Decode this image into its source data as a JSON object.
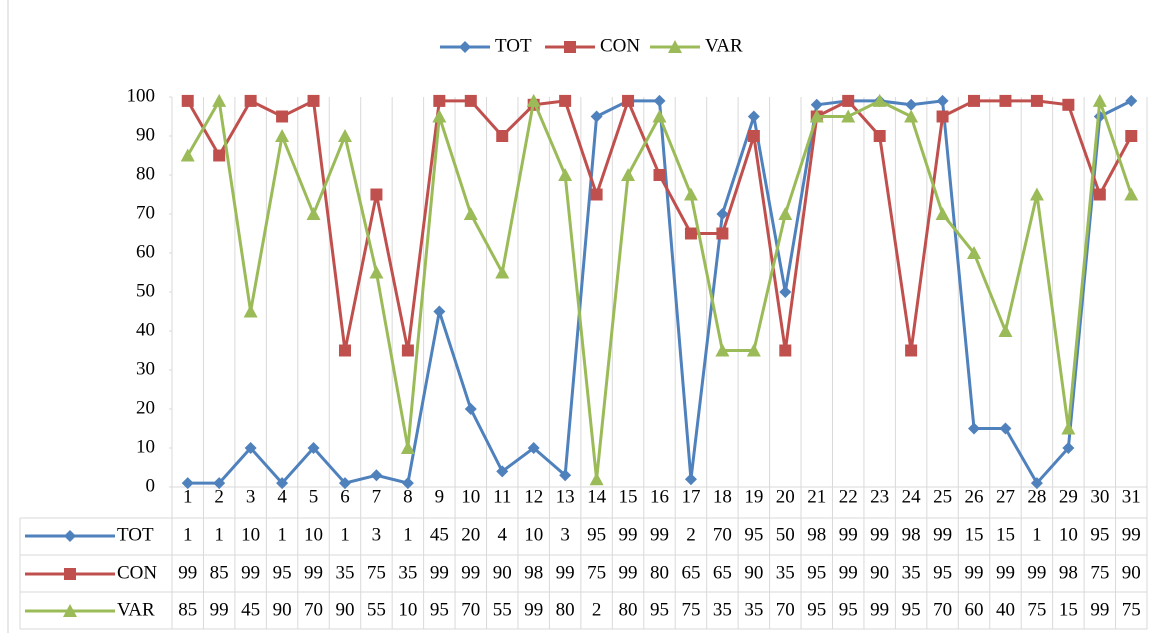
{
  "chart_data": {
    "type": "line",
    "categories": [
      "1",
      "2",
      "3",
      "4",
      "5",
      "6",
      "7",
      "8",
      "9",
      "10",
      "11",
      "12",
      "13",
      "14",
      "15",
      "16",
      "17",
      "18",
      "19",
      "20",
      "21",
      "22",
      "23",
      "24",
      "25",
      "26",
      "27",
      "28",
      "29",
      "30",
      "31"
    ],
    "series": [
      {
        "name": "TOT",
        "color": "#4f81bd",
        "marker": "diamond",
        "values": [
          1,
          1,
          10,
          1,
          10,
          1,
          3,
          1,
          45,
          20,
          4,
          10,
          3,
          95,
          99,
          99,
          2,
          70,
          95,
          50,
          98,
          99,
          99,
          98,
          99,
          15,
          15,
          1,
          10,
          95,
          99
        ]
      },
      {
        "name": "CON",
        "color": "#c0504d",
        "marker": "square",
        "values": [
          99,
          85,
          99,
          95,
          99,
          35,
          75,
          35,
          99,
          99,
          90,
          98,
          99,
          75,
          99,
          80,
          65,
          65,
          90,
          35,
          95,
          99,
          90,
          35,
          95,
          99,
          99,
          99,
          98,
          75,
          90
        ]
      },
      {
        "name": "VAR",
        "color": "#9bbb59",
        "marker": "triangle",
        "values": [
          85,
          99,
          45,
          90,
          70,
          90,
          55,
          10,
          95,
          70,
          55,
          99,
          80,
          2,
          80,
          95,
          75,
          35,
          35,
          70,
          95,
          95,
          99,
          95,
          70,
          60,
          40,
          75,
          15,
          99,
          75
        ]
      }
    ],
    "ylim": [
      0,
      100
    ],
    "yticks": [
      0,
      10,
      20,
      30,
      40,
      50,
      60,
      70,
      80,
      90,
      100
    ],
    "legend": "top",
    "data_table": true,
    "grid": "vertical"
  }
}
